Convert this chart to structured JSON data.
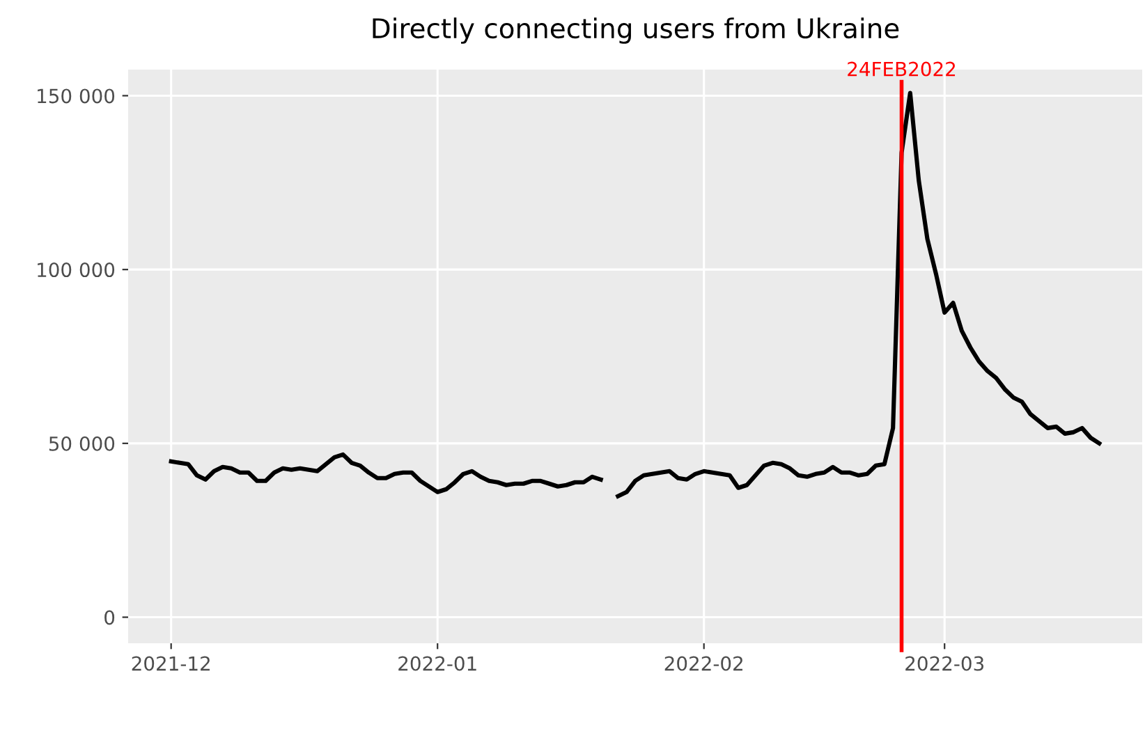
{
  "chart_data": {
    "type": "line",
    "title": "Directly connecting users from Ukraine",
    "x": [
      "2021-12-01",
      "2021-12-02",
      "2021-12-03",
      "2021-12-04",
      "2021-12-05",
      "2021-12-06",
      "2021-12-07",
      "2021-12-08",
      "2021-12-09",
      "2021-12-10",
      "2021-12-11",
      "2021-12-12",
      "2021-12-13",
      "2021-12-14",
      "2021-12-15",
      "2021-12-16",
      "2021-12-17",
      "2021-12-18",
      "2021-12-19",
      "2021-12-20",
      "2021-12-21",
      "2021-12-22",
      "2021-12-23",
      "2021-12-24",
      "2021-12-25",
      "2021-12-26",
      "2021-12-27",
      "2021-12-28",
      "2021-12-29",
      "2021-12-30",
      "2021-12-31",
      "2022-01-01",
      "2022-01-02",
      "2022-01-03",
      "2022-01-04",
      "2022-01-05",
      "2022-01-06",
      "2022-01-07",
      "2022-01-08",
      "2022-01-09",
      "2022-01-10",
      "2022-01-11",
      "2022-01-12",
      "2022-01-13",
      "2022-01-14",
      "2022-01-15",
      "2022-01-16",
      "2022-01-17",
      "2022-01-18",
      "2022-01-19",
      "2022-01-20",
      "2022-01-21",
      "2022-01-22",
      "2022-01-23",
      "2022-01-24",
      "2022-01-25",
      "2022-01-26",
      "2022-01-27",
      "2022-01-28",
      "2022-01-29",
      "2022-01-30",
      "2022-01-31",
      "2022-02-01",
      "2022-02-02",
      "2022-02-03",
      "2022-02-04",
      "2022-02-05",
      "2022-02-06",
      "2022-02-07",
      "2022-02-08",
      "2022-02-09",
      "2022-02-10",
      "2022-02-11",
      "2022-02-12",
      "2022-02-13",
      "2022-02-14",
      "2022-02-15",
      "2022-02-16",
      "2022-02-17",
      "2022-02-18",
      "2022-02-19",
      "2022-02-20",
      "2022-02-21",
      "2022-02-22",
      "2022-02-23",
      "2022-02-24",
      "2022-02-25",
      "2022-02-26",
      "2022-02-27",
      "2022-02-28",
      "2022-03-01",
      "2022-03-02",
      "2022-03-03",
      "2022-03-04",
      "2022-03-05",
      "2022-03-06",
      "2022-03-07",
      "2022-03-08",
      "2022-03-09",
      "2022-03-10",
      "2022-03-11",
      "2022-03-12",
      "2022-03-13",
      "2022-03-14",
      "2022-03-15",
      "2022-03-16",
      "2022-03-17",
      "2022-03-18",
      "2022-03-19"
    ],
    "series": [
      {
        "color": "#000000",
        "values": [
          44800,
          44400,
          44000,
          40800,
          39600,
          42000,
          43200,
          42800,
          41600,
          41600,
          39200,
          39200,
          41600,
          42800,
          42400,
          42800,
          42400,
          42000,
          44000,
          46000,
          46800,
          44400,
          43600,
          41600,
          40000,
          40000,
          41200,
          41600,
          41600,
          39200,
          37600,
          36000,
          36800,
          38800,
          41200,
          42000,
          40400,
          39200,
          38800,
          38000,
          38400,
          38400,
          39200,
          39200,
          38400,
          37600,
          38000,
          38800,
          38800,
          40400,
          39600,
          null,
          34800,
          36000,
          39200,
          40800,
          41200,
          41600,
          42000,
          40000,
          39600,
          41200,
          42000,
          41600,
          41200,
          40800,
          37200,
          38000,
          40800,
          43600,
          44400,
          44000,
          42800,
          40800,
          40400,
          41200,
          41600,
          43200,
          41600,
          41600,
          40800,
          41200,
          43600,
          44000,
          54400,
          133600,
          150800,
          125600,
          108800,
          98800,
          87600,
          90400,
          82400,
          77600,
          73600,
          70800,
          68800,
          65600,
          63200,
          62000,
          58400,
          56400,
          54400,
          54800,
          52800,
          53200,
          54400,
          51600,
          50000
        ]
      }
    ],
    "xlim": [
      "2021-11-26",
      "2022-03-24"
    ],
    "xticks": [
      {
        "value": "2021-12-01",
        "label": "2021-12"
      },
      {
        "value": "2022-01-01",
        "label": "2022-01"
      },
      {
        "value": "2022-02-01",
        "label": "2022-02"
      },
      {
        "value": "2022-03-01",
        "label": "2022-03"
      }
    ],
    "ylim": [
      -7500,
      157500
    ],
    "yticks": [
      {
        "value": 0,
        "label": "0"
      },
      {
        "value": 50000,
        "label": "50 000"
      },
      {
        "value": 100000,
        "label": "100 000"
      },
      {
        "value": 150000,
        "label": "150 000"
      }
    ],
    "ref_lines": [
      {
        "axis": "x",
        "value": "2022-02-24",
        "label": "24FEB2022",
        "color": "#ff0000"
      }
    ],
    "grid": true,
    "legend": false,
    "marker": "none",
    "line_style": "solid"
  }
}
